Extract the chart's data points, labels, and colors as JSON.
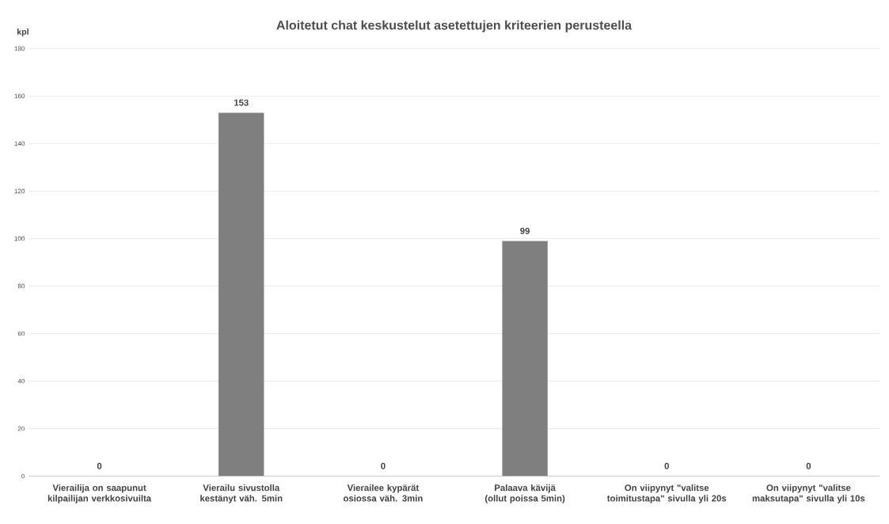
{
  "chart_data": {
    "type": "bar",
    "title": "Aloitetut chat keskustelut asetettujen kriteerien perusteella",
    "ylabel": "kpl",
    "categories": [
      "Vierailija on saapunut kilpailijan verkkosivuilta",
      "Vierailu sivustolla kestänyt väh. 5min",
      "Vierailee kypärät osiossa väh. 3min",
      "Palaava kävijä (ollut poissa 5min)",
      "On viipynyt \"valitse toimitustapa\" sivulla yli 20s",
      "On viipynyt \"valitse maksutapa\" sivulla yli 10s"
    ],
    "values": [
      0,
      153,
      0,
      99,
      0,
      0
    ],
    "color": "#7f7f7f",
    "ylim": [
      0,
      180
    ],
    "yticks": [
      0,
      20,
      40,
      60,
      80,
      100,
      120,
      140,
      160,
      180
    ],
    "grid": "y",
    "data_labels": true
  }
}
